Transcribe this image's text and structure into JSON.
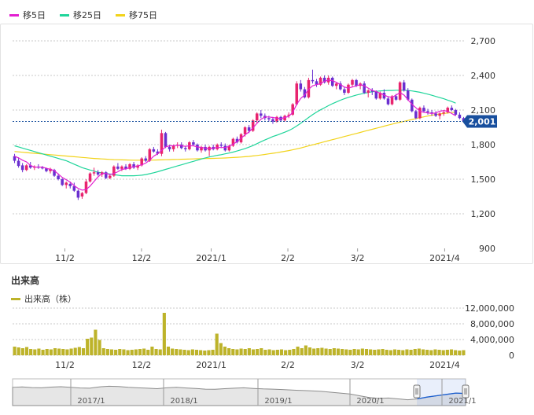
{
  "legend": {
    "ma5": "移5日",
    "ma25": "移25日",
    "ma75": "移75日"
  },
  "colors": {
    "ma5": "#e31fd1",
    "ma25": "#1fd59a",
    "ma75": "#f2d31a",
    "up": "#e8246e",
    "down": "#6a2fd0",
    "volume": "#bdb32a",
    "price_box": "#184f9e",
    "grid": "#c8c8c8"
  },
  "volume_section": {
    "title": "出来高",
    "legend": "出来高（株）"
  },
  "current_price_label": "2,001",
  "chart_data": [
    {
      "type": "candlestick",
      "title": "",
      "y_ticks": [
        "2,700",
        "2,400",
        "2,100",
        "1,800",
        "1,500",
        "1,200",
        "900"
      ],
      "y_tick_values": [
        2700,
        2400,
        2100,
        1800,
        1500,
        1200,
        900
      ],
      "ylim": [
        900,
        2850
      ],
      "x_tick_labels": [
        "11/2",
        "12/2",
        "2021/1",
        "2/2",
        "3/2",
        "2021/4"
      ],
      "grid": true,
      "current_price": 2001,
      "ohlc": [
        [
          1700,
          1720,
          1640,
          1660
        ],
        [
          1660,
          1690,
          1600,
          1615
        ],
        [
          1620,
          1640,
          1560,
          1580
        ],
        [
          1580,
          1630,
          1570,
          1620
        ],
        [
          1620,
          1650,
          1590,
          1600
        ],
        [
          1600,
          1620,
          1580,
          1610
        ],
        [
          1610,
          1630,
          1590,
          1600
        ],
        [
          1600,
          1615,
          1585,
          1595
        ],
        [
          1595,
          1600,
          1560,
          1570
        ],
        [
          1570,
          1600,
          1550,
          1590
        ],
        [
          1580,
          1590,
          1520,
          1530
        ],
        [
          1530,
          1550,
          1490,
          1500
        ],
        [
          1500,
          1510,
          1440,
          1450
        ],
        [
          1450,
          1480,
          1420,
          1470
        ],
        [
          1460,
          1480,
          1420,
          1440
        ],
        [
          1440,
          1470,
          1390,
          1400
        ],
        [
          1400,
          1410,
          1320,
          1340
        ],
        [
          1350,
          1390,
          1330,
          1380
        ],
        [
          1380,
          1500,
          1370,
          1480
        ],
        [
          1480,
          1560,
          1470,
          1550
        ],
        [
          1550,
          1600,
          1530,
          1560
        ],
        [
          1560,
          1580,
          1530,
          1540
        ],
        [
          1540,
          1570,
          1520,
          1560
        ],
        [
          1560,
          1570,
          1500,
          1510
        ],
        [
          1510,
          1540,
          1500,
          1530
        ],
        [
          1530,
          1620,
          1520,
          1610
        ],
        [
          1610,
          1640,
          1580,
          1590
        ],
        [
          1590,
          1620,
          1570,
          1610
        ],
        [
          1610,
          1630,
          1580,
          1590
        ],
        [
          1590,
          1640,
          1580,
          1630
        ],
        [
          1630,
          1650,
          1590,
          1600
        ],
        [
          1600,
          1630,
          1580,
          1620
        ],
        [
          1620,
          1690,
          1610,
          1680
        ],
        [
          1680,
          1700,
          1650,
          1660
        ],
        [
          1660,
          1770,
          1650,
          1760
        ],
        [
          1760,
          1780,
          1730,
          1740
        ],
        [
          1740,
          1760,
          1710,
          1720
        ],
        [
          1720,
          1930,
          1700,
          1900
        ],
        [
          1900,
          1910,
          1770,
          1780
        ],
        [
          1780,
          1800,
          1740,
          1760
        ],
        [
          1760,
          1800,
          1740,
          1790
        ],
        [
          1790,
          1820,
          1770,
          1800
        ],
        [
          1800,
          1820,
          1760,
          1770
        ],
        [
          1770,
          1790,
          1740,
          1760
        ],
        [
          1760,
          1830,
          1750,
          1820
        ],
        [
          1820,
          1840,
          1790,
          1800
        ],
        [
          1800,
          1810,
          1740,
          1750
        ],
        [
          1750,
          1790,
          1730,
          1780
        ],
        [
          1780,
          1800,
          1740,
          1750
        ],
        [
          1750,
          1790,
          1700,
          1780
        ],
        [
          1780,
          1800,
          1750,
          1760
        ],
        [
          1760,
          1810,
          1750,
          1800
        ],
        [
          1800,
          1820,
          1770,
          1790
        ],
        [
          1790,
          1810,
          1740,
          1750
        ],
        [
          1750,
          1800,
          1740,
          1790
        ],
        [
          1790,
          1860,
          1780,
          1850
        ],
        [
          1850,
          1870,
          1810,
          1820
        ],
        [
          1820,
          1900,
          1810,
          1890
        ],
        [
          1890,
          1960,
          1870,
          1950
        ],
        [
          1950,
          1970,
          1900,
          1920
        ],
        [
          1920,
          2020,
          1910,
          2010
        ],
        [
          2010,
          2080,
          1990,
          2070
        ],
        [
          2070,
          2100,
          2030,
          2050
        ],
        [
          2050,
          2070,
          2010,
          2030
        ],
        [
          2030,
          2050,
          2000,
          2020
        ],
        [
          2020,
          2040,
          1980,
          2000
        ],
        [
          2000,
          2050,
          1990,
          2040
        ],
        [
          2040,
          2050,
          2000,
          2010
        ],
        [
          2010,
          2060,
          2000,
          2050
        ],
        [
          2050,
          2080,
          2030,
          2060
        ],
        [
          2060,
          2160,
          2050,
          2150
        ],
        [
          2150,
          2350,
          2140,
          2330
        ],
        [
          2330,
          2360,
          2260,
          2280
        ],
        [
          2280,
          2300,
          2200,
          2210
        ],
        [
          2210,
          2380,
          2200,
          2360
        ],
        [
          2360,
          2450,
          2330,
          2350
        ],
        [
          2350,
          2370,
          2300,
          2320
        ],
        [
          2320,
          2390,
          2310,
          2380
        ],
        [
          2380,
          2400,
          2330,
          2340
        ],
        [
          2340,
          2400,
          2320,
          2380
        ],
        [
          2380,
          2390,
          2300,
          2310
        ],
        [
          2310,
          2340,
          2280,
          2330
        ],
        [
          2330,
          2350,
          2270,
          2280
        ],
        [
          2280,
          2300,
          2230,
          2250
        ],
        [
          2250,
          2330,
          2240,
          2320
        ],
        [
          2320,
          2370,
          2300,
          2360
        ],
        [
          2360,
          2370,
          2300,
          2310
        ],
        [
          2310,
          2340,
          2280,
          2330
        ],
        [
          2330,
          2350,
          2240,
          2250
        ],
        [
          2250,
          2280,
          2210,
          2270
        ],
        [
          2270,
          2290,
          2230,
          2260
        ],
        [
          2260,
          2270,
          2190,
          2200
        ],
        [
          2200,
          2260,
          2190,
          2250
        ],
        [
          2250,
          2280,
          2190,
          2200
        ],
        [
          2200,
          2220,
          2140,
          2150
        ],
        [
          2150,
          2230,
          2140,
          2220
        ],
        [
          2220,
          2240,
          2180,
          2190
        ],
        [
          2190,
          2350,
          2180,
          2340
        ],
        [
          2340,
          2360,
          2260,
          2270
        ],
        [
          2270,
          2290,
          2180,
          2190
        ],
        [
          2190,
          2200,
          2080,
          2090
        ],
        [
          2090,
          2100,
          2020,
          2030
        ],
        [
          2030,
          2130,
          2020,
          2120
        ],
        [
          2120,
          2140,
          2080,
          2090
        ],
        [
          2090,
          2110,
          2060,
          2080
        ],
        [
          2080,
          2100,
          2050,
          2070
        ],
        [
          2070,
          2090,
          2040,
          2050
        ],
        [
          2050,
          2080,
          2020,
          2070
        ],
        [
          2070,
          2100,
          2050,
          2080
        ],
        [
          2080,
          2130,
          2070,
          2120
        ],
        [
          2120,
          2140,
          2090,
          2100
        ],
        [
          2100,
          2110,
          2050,
          2060
        ],
        [
          2060,
          2080,
          2020,
          2030
        ],
        [
          2030,
          2040,
          1990,
          2001
        ]
      ],
      "ma5": [
        1700,
        1685,
        1665,
        1650,
        1620,
        1605,
        1605,
        1605,
        1595,
        1585,
        1575,
        1545,
        1515,
        1495,
        1475,
        1445,
        1420,
        1405,
        1410,
        1440,
        1480,
        1520,
        1550,
        1550,
        1540,
        1550,
        1565,
        1585,
        1590,
        1600,
        1610,
        1615,
        1625,
        1640,
        1665,
        1700,
        1720,
        1750,
        1780,
        1790,
        1790,
        1795,
        1790,
        1785,
        1790,
        1790,
        1780,
        1775,
        1770,
        1765,
        1770,
        1775,
        1775,
        1775,
        1785,
        1805,
        1825,
        1855,
        1885,
        1910,
        1945,
        1985,
        2020,
        2040,
        2040,
        2035,
        2030,
        2025,
        2035,
        2045,
        2080,
        2150,
        2200,
        2230,
        2280,
        2310,
        2320,
        2330,
        2350,
        2360,
        2355,
        2340,
        2320,
        2300,
        2290,
        2300,
        2310,
        2320,
        2310,
        2290,
        2270,
        2260,
        2245,
        2230,
        2215,
        2210,
        2230,
        2250,
        2230,
        2190,
        2150,
        2120,
        2090,
        2080,
        2075,
        2070,
        2075,
        2090,
        2095,
        2090,
        2070,
        2050
      ],
      "ma25": [
        1790,
        1780,
        1770,
        1760,
        1750,
        1740,
        1730,
        1720,
        1710,
        1700,
        1690,
        1680,
        1670,
        1660,
        1645,
        1630,
        1615,
        1600,
        1590,
        1580,
        1570,
        1560,
        1555,
        1550,
        1545,
        1540,
        1535,
        1530,
        1530,
        1530,
        1530,
        1532,
        1535,
        1540,
        1548,
        1556,
        1565,
        1575,
        1585,
        1595,
        1605,
        1615,
        1625,
        1635,
        1645,
        1655,
        1665,
        1675,
        1685,
        1693,
        1700,
        1707,
        1713,
        1720,
        1727,
        1735,
        1745,
        1755,
        1765,
        1778,
        1792,
        1808,
        1825,
        1840,
        1855,
        1870,
        1882,
        1895,
        1908,
        1922,
        1940,
        1962,
        1985,
        2010,
        2035,
        2060,
        2082,
        2102,
        2120,
        2138,
        2155,
        2170,
        2185,
        2198,
        2210,
        2220,
        2230,
        2238,
        2246,
        2252,
        2258,
        2262,
        2266,
        2268,
        2270,
        2270,
        2272,
        2272,
        2272,
        2270,
        2266,
        2260,
        2254,
        2246,
        2238,
        2228,
        2218,
        2208,
        2198,
        2186,
        2174,
        2160
      ],
      "ma75": [
        1740,
        1737,
        1734,
        1731,
        1728,
        1725,
        1722,
        1719,
        1716,
        1713,
        1710,
        1707,
        1704,
        1701,
        1698,
        1695,
        1692,
        1689,
        1686,
        1683,
        1680,
        1678,
        1676,
        1674,
        1672,
        1670,
        1669,
        1668,
        1667,
        1666,
        1665,
        1665,
        1665,
        1665,
        1665,
        1666,
        1667,
        1668,
        1669,
        1670,
        1671,
        1672,
        1673,
        1674,
        1675,
        1676,
        1677,
        1678,
        1679,
        1680,
        1681,
        1682,
        1683,
        1684,
        1686,
        1688,
        1690,
        1692,
        1695,
        1698,
        1702,
        1706,
        1710,
        1715,
        1720,
        1725,
        1730,
        1736,
        1742,
        1748,
        1755,
        1763,
        1771,
        1780,
        1789,
        1798,
        1807,
        1816,
        1825,
        1834,
        1843,
        1852,
        1861,
        1870,
        1879,
        1888,
        1897,
        1906,
        1915,
        1924,
        1933,
        1942,
        1951,
        1960,
        1969,
        1978,
        1986,
        1994,
        2002,
        2010,
        2018,
        2026,
        2034,
        2041,
        2048,
        2055,
        2061,
        2066,
        2070,
        2074,
        2078,
        2082
      ]
    },
    {
      "type": "bar",
      "title": "出来高",
      "series_name": "出来高（株）",
      "y_ticks": [
        "12,000,000",
        "8,000,000",
        "4,000,000",
        "0"
      ],
      "y_tick_values": [
        12000000,
        8000000,
        4000000,
        0
      ],
      "ylim": [
        0,
        12000000
      ],
      "x_tick_labels": [
        "11/2",
        "12/2",
        "2021/1",
        "2/2",
        "3/2",
        "2021/4"
      ],
      "values": [
        2200000,
        2000000,
        1800000,
        2100000,
        1600000,
        1500000,
        1700000,
        1400000,
        1600000,
        1500000,
        1800000,
        1700000,
        1600000,
        1500000,
        1700000,
        1900000,
        2100000,
        1800000,
        4200000,
        4500000,
        6500000,
        3900000,
        1800000,
        1600000,
        1500000,
        1400000,
        1600000,
        1500000,
        1300000,
        1400000,
        1500000,
        1600000,
        1700000,
        1400000,
        2200000,
        1600000,
        1500000,
        10800000,
        2200000,
        1700000,
        1600000,
        1500000,
        1400000,
        1300000,
        1500000,
        1400000,
        1300000,
        1200000,
        1300000,
        1400000,
        5500000,
        3100000,
        2200000,
        1800000,
        1600000,
        1500000,
        1700000,
        1600000,
        1800000,
        1500000,
        1600000,
        1800000,
        1400000,
        1500000,
        1300000,
        1400000,
        1500000,
        1300000,
        1400000,
        1600000,
        2200000,
        1800000,
        2500000,
        2000000,
        1700000,
        1800000,
        1900000,
        1700000,
        1600000,
        1800000,
        1700000,
        1600000,
        1500000,
        1400000,
        1600000,
        1500000,
        1700000,
        1600000,
        1500000,
        1400000,
        1500000,
        1600000,
        1400000,
        1300000,
        1500000,
        1400000,
        1300000,
        1500000,
        1400000,
        1600000,
        1700000,
        1500000,
        1400000,
        1300000,
        1500000,
        1400000,
        1300000,
        1400000,
        1500000,
        1300000,
        1200000,
        1300000
      ]
    },
    {
      "type": "area",
      "title": "",
      "x_tick_labels": [
        "2017/1",
        "2018/1",
        "2019/1",
        "2020/1",
        "2021/1"
      ],
      "values": [
        2280,
        2300,
        2270,
        2260,
        2290,
        2310,
        2280,
        2250,
        2240,
        2300,
        2330,
        2320,
        2280,
        2260,
        2240,
        2220,
        2260,
        2280,
        2250,
        2230,
        2200,
        2190,
        2220,
        2240,
        2260,
        2230,
        2210,
        2200,
        2180,
        2160,
        2140,
        2120,
        2100,
        2060,
        2020,
        1980,
        1900,
        1820,
        1780,
        1800,
        1760,
        1720,
        1760,
        1840,
        1900,
        1960,
        2020,
        2000
      ],
      "selected_range": "2021"
    }
  ]
}
